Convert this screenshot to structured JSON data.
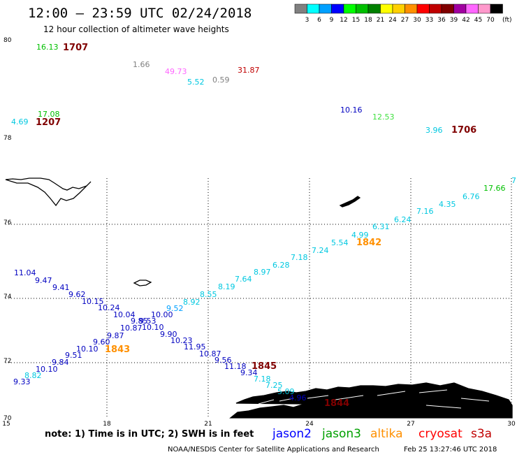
{
  "header": {
    "title": "12:00 – 23:59 UTC 02/24/2018",
    "subtitle": "12 hour collection of altimeter wave heights"
  },
  "legend": {
    "unit": "(ft)",
    "bins": [
      {
        "label": "3",
        "color": "#808080"
      },
      {
        "label": "6",
        "color": "#00ffff"
      },
      {
        "label": "9",
        "color": "#00a0ff"
      },
      {
        "label": "12",
        "color": "#0000ff"
      },
      {
        "label": "15",
        "color": "#00ff00"
      },
      {
        "label": "18",
        "color": "#00c000"
      },
      {
        "label": "21",
        "color": "#008000"
      },
      {
        "label": "24",
        "color": "#ffff00"
      },
      {
        "label": "27",
        "color": "#ffd000"
      },
      {
        "label": "30",
        "color": "#ff9000"
      },
      {
        "label": "33",
        "color": "#ff0000"
      },
      {
        "label": "36",
        "color": "#c00000"
      },
      {
        "label": "39",
        "color": "#800000"
      },
      {
        "label": "42",
        "color": "#a000a0"
      },
      {
        "label": "45",
        "color": "#ff66ff"
      },
      {
        "label": "70",
        "color": "#ff99cc"
      },
      {
        "label": "",
        "color": "#000000"
      }
    ]
  },
  "axes": {
    "lat_labels": [
      "80",
      "78",
      "76",
      "74",
      "72",
      "70"
    ],
    "lon_labels": [
      "15",
      "18",
      "21",
      "24",
      "27",
      "30"
    ]
  },
  "observations": [
    {
      "text": "16.13",
      "color": "#00c000"
    },
    {
      "text": "1707",
      "color": "#800000"
    },
    {
      "text": "1.66",
      "color": "#808080"
    },
    {
      "text": "49.73",
      "color": "#ff66ff"
    },
    {
      "text": "31.87",
      "color": "#c00000"
    },
    {
      "text": "5.52",
      "color": "#00c8e0"
    },
    {
      "text": "0.59",
      "color": "#808080"
    },
    {
      "text": "17.08",
      "color": "#00c000"
    },
    {
      "text": "4.69",
      "color": "#00c8e0"
    },
    {
      "text": "1207",
      "color": "#800000"
    },
    {
      "text": "10.16",
      "color": "#0000c0"
    },
    {
      "text": "12.53",
      "color": "#40e040"
    },
    {
      "text": "3.96",
      "color": "#00c8e0"
    },
    {
      "text": "1706",
      "color": "#800000"
    },
    {
      "text": "7",
      "color": "#00c8e0"
    },
    {
      "text": "17.66",
      "color": "#00c000"
    },
    {
      "text": "6.76",
      "color": "#00c8e0"
    },
    {
      "text": "4.35",
      "color": "#00c8e0"
    },
    {
      "text": "7.16",
      "color": "#00c8e0"
    },
    {
      "text": "6.24",
      "color": "#00c8e0"
    },
    {
      "text": "6.31",
      "color": "#00c8e0"
    },
    {
      "text": "4.99",
      "color": "#00c8e0"
    },
    {
      "text": "1842",
      "color": "#ff9000"
    },
    {
      "text": "5.54",
      "color": "#00c8e0"
    },
    {
      "text": "7.24",
      "color": "#00c8e0"
    },
    {
      "text": "7.18",
      "color": "#00c8e0"
    },
    {
      "text": "6.28",
      "color": "#00c8e0"
    },
    {
      "text": "8.97",
      "color": "#00c8e0"
    },
    {
      "text": "7.64",
      "color": "#00c8e0"
    },
    {
      "text": "8.19",
      "color": "#00c8e0"
    },
    {
      "text": "8.55",
      "color": "#00c8e0"
    },
    {
      "text": "8.92",
      "color": "#00c8e0"
    },
    {
      "text": "9.52",
      "color": "#00a0ff"
    },
    {
      "text": "10.00",
      "color": "#0000c0"
    },
    {
      "text": "11.04",
      "color": "#0000c0"
    },
    {
      "text": "9.47",
      "color": "#0000c0"
    },
    {
      "text": "9.41",
      "color": "#0000c0"
    },
    {
      "text": "9.62",
      "color": "#0000c0"
    },
    {
      "text": "10.15",
      "color": "#0000c0"
    },
    {
      "text": "10.24",
      "color": "#0000c0"
    },
    {
      "text": "10.04",
      "color": "#0000c0"
    },
    {
      "text": "9.85",
      "color": "#0000c0"
    },
    {
      "text": "9.53",
      "color": "#0000c0"
    },
    {
      "text": "10.87",
      "color": "#0000c0"
    },
    {
      "text": "10.10",
      "color": "#0000c0"
    },
    {
      "text": "9.87",
      "color": "#0000c0"
    },
    {
      "text": "9.90",
      "color": "#0000c0"
    },
    {
      "text": "9.60",
      "color": "#0000c0"
    },
    {
      "text": "10.23",
      "color": "#0000c0"
    },
    {
      "text": "10.10",
      "color": "#0000c0"
    },
    {
      "text": "1843",
      "color": "#ff9000"
    },
    {
      "text": "11.95",
      "color": "#0000c0"
    },
    {
      "text": "9.51",
      "color": "#0000c0"
    },
    {
      "text": "10.87",
      "color": "#0000c0"
    },
    {
      "text": "9.84",
      "color": "#0000c0"
    },
    {
      "text": "9.56",
      "color": "#0000c0"
    },
    {
      "text": "10.10",
      "color": "#0000c0"
    },
    {
      "text": "11.18",
      "color": "#0000c0"
    },
    {
      "text": "1845",
      "color": "#800000"
    },
    {
      "text": "8.82",
      "color": "#00c8e0"
    },
    {
      "text": "9.34",
      "color": "#0000c0"
    },
    {
      "text": "9.33",
      "color": "#0000c0"
    },
    {
      "text": "7.18",
      "color": "#00c8e0"
    },
    {
      "text": "7.25",
      "color": "#00c8e0"
    },
    {
      "text": "5.09",
      "color": "#00c8e0"
    },
    {
      "text": "4.96",
      "color": "#0000c0"
    },
    {
      "text": "1844",
      "color": "#800000"
    }
  ],
  "footer": {
    "note": "note: 1) Time is in UTC; 2) SWH is in feet",
    "satellites": [
      {
        "name": "jason2",
        "color": "#0000ff"
      },
      {
        "name": "jason3",
        "color": "#00a000"
      },
      {
        "name": "altika",
        "color": "#ff9000"
      },
      {
        "name": "cryosat",
        "color": "#ff0000"
      },
      {
        "name": "s3a",
        "color": "#c00000"
      }
    ],
    "credit": "NOAA/NESDIS Center for Satellite Applications and Research",
    "timestamp": "Feb 25 13:27:46 UTC 2018"
  }
}
